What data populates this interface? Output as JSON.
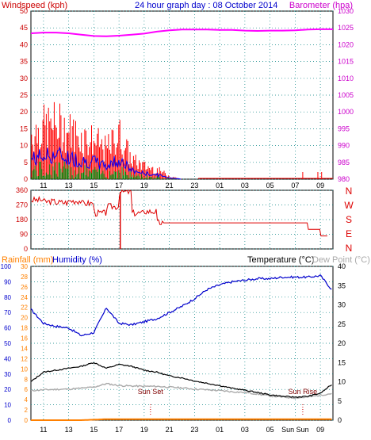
{
  "header": {
    "title": "24 hour graph day : 08 October 2014",
    "left_label": "Windspeed (kph)",
    "right_label": "Barometer (hpa)"
  },
  "colors": {
    "wind_max": "#ff0000",
    "wind_avg": "#0000ff",
    "wind_min": "#008000",
    "barometer": "#ff00ff",
    "direction": "#dd0000",
    "rain": "#ff8000",
    "humidity": "#0000cc",
    "temperature": "#000000",
    "dew_point": "#aaaaaa",
    "grid": "#008080",
    "axis_text": "#0000ff",
    "left_axis_text": "#cc0000"
  },
  "x_axis_labels": [
    "11",
    "13",
    "15",
    "17",
    "19",
    "21",
    "23",
    "01",
    "03",
    "05",
    "07",
    "09"
  ],
  "bottom_x_axis_labels": [
    "11",
    "13",
    "15",
    "17",
    "19",
    "21",
    "23",
    "01",
    "03",
    "05",
    "Sun Sun",
    "09"
  ],
  "panel1": {
    "left_ticks": [
      "0",
      "5",
      "10",
      "15",
      "20",
      "25",
      "30",
      "35",
      "40",
      "45",
      "50"
    ],
    "right_ticks": [
      "980",
      "985",
      "990",
      "995",
      "1000",
      "1005",
      "1010",
      "1015",
      "1020",
      "1025",
      "1030"
    ]
  },
  "panel2": {
    "left_ticks": [
      "0",
      "90",
      "180",
      "270",
      "360"
    ],
    "direction_letters": [
      "N",
      "W",
      "S",
      "E",
      "N"
    ]
  },
  "panel3": {
    "rain_label": "Rainfall (mm)",
    "humidity_label": "Humidity (%)",
    "temperature_label": "Temperature (°C)",
    "dewpoint_label": "Dew Point (°C)",
    "rain_ticks": [
      "0",
      "2",
      "4",
      "6",
      "8",
      "10",
      "12",
      "14",
      "16",
      "18",
      "20",
      "22",
      "24",
      "26",
      "28",
      "30"
    ],
    "humidity_ticks": [
      "0",
      "10",
      "20",
      "30",
      "40",
      "50",
      "60",
      "70",
      "80",
      "90",
      "100"
    ],
    "temp_ticks": [
      "0",
      "5",
      "10",
      "15",
      "20",
      "25",
      "30",
      "35",
      "40"
    ],
    "sunset_label": "Sun Set",
    "sunrise_label": "Sun Rise"
  },
  "chart_data": [
    {
      "type": "line",
      "title": "24 hour graph day : 08 October 2014",
      "x_unit": "hour",
      "x": [
        10,
        11,
        12,
        13,
        14,
        15,
        16,
        17,
        18,
        19,
        20,
        21,
        22,
        23,
        24,
        25,
        26,
        27,
        28,
        29,
        30,
        31,
        32,
        33,
        34
      ],
      "series": [
        {
          "name": "Windspeed (kph)",
          "axis": "left",
          "values": [
            14,
            16,
            17,
            15,
            13,
            12,
            9,
            14,
            6,
            4,
            3,
            1,
            0,
            0,
            0,
            0,
            0,
            0,
            0,
            0,
            0,
            0,
            0,
            0,
            0
          ]
        },
        {
          "name": "Barometer (hpa)",
          "axis": "right",
          "values": [
            1023.4,
            1023.6,
            1023.6,
            1023.4,
            1023,
            1022.6,
            1022.5,
            1022.7,
            1023,
            1023.3,
            1023.9,
            1024.3,
            1024.5,
            1024.5,
            1024.5,
            1024.4,
            1024.4,
            1024.2,
            1024.1,
            1024.2,
            1024.2,
            1024.3,
            1024.5,
            1024.6,
            1024.6
          ]
        }
      ],
      "ylim_left": [
        0,
        50
      ],
      "ylim_right": [
        980,
        1030
      ]
    },
    {
      "type": "line",
      "title": "",
      "x_unit": "hour",
      "x": [
        10,
        11,
        12,
        13,
        14,
        15,
        16,
        17,
        18,
        19,
        20,
        21,
        22,
        23,
        24,
        25,
        26,
        27,
        28,
        29,
        30,
        31,
        32,
        33,
        34
      ],
      "series": [
        {
          "name": "",
          "values": [
            300,
            290,
            285,
            295,
            280,
            220,
            260,
            350,
            220,
            230,
            160,
            160,
            160,
            160,
            160,
            160,
            160,
            160,
            160,
            160,
            160,
            160,
            120,
            80,
            80
          ]
        }
      ],
      "ylim": [
        0,
        360
      ]
    },
    {
      "type": "line",
      "title": "",
      "x_unit": "hour",
      "x": [
        10,
        11,
        12,
        13,
        14,
        15,
        16,
        17,
        18,
        19,
        20,
        21,
        22,
        23,
        24,
        25,
        26,
        27,
        28,
        29,
        30,
        31,
        32,
        33,
        34
      ],
      "series": [
        {
          "name": "Humidity (%)",
          "axis": "humidity",
          "values": [
            72,
            63,
            61,
            60,
            55,
            57,
            73,
            63,
            62,
            64,
            66,
            70,
            74,
            79,
            85,
            88,
            90,
            91,
            92,
            92,
            93,
            93,
            93,
            94,
            84
          ]
        },
        {
          "name": "Temperature (°C)",
          "axis": "temperature",
          "values": [
            10,
            12.5,
            13,
            13.5,
            14,
            15,
            13.5,
            14.5,
            14,
            13,
            12.5,
            11.5,
            11,
            10.2,
            9.6,
            9,
            8.3,
            7.8,
            7.2,
            6.6,
            6.2,
            6,
            6.2,
            7,
            9.5
          ]
        },
        {
          "name": "Dew Point (°C)",
          "axis": "temperature",
          "values": [
            7.7,
            7.9,
            8,
            8.1,
            8.3,
            8.6,
            9.5,
            9,
            8.9,
            8.8,
            8.8,
            8.6,
            8.4,
            8.1,
            7.9,
            7.7,
            7.4,
            7.2,
            6.8,
            6.3,
            6,
            5.8,
            6,
            6.5,
            7
          ]
        },
        {
          "name": "Rainfall (mm)",
          "axis": "rain",
          "values": [
            0,
            0,
            0,
            0,
            0,
            0.1,
            0.2,
            0.2,
            0.2,
            0.2,
            0.2,
            0.2,
            0.2,
            0.2,
            0.2,
            0.2,
            0.2,
            0.2,
            0.2,
            0.2,
            0.2,
            0.2,
            0.2,
            0.2,
            0.2
          ]
        }
      ],
      "ylim_humidity": [
        0,
        100
      ],
      "ylim_temperature": [
        0,
        40
      ],
      "ylim_rain": [
        0,
        30
      ]
    }
  ]
}
